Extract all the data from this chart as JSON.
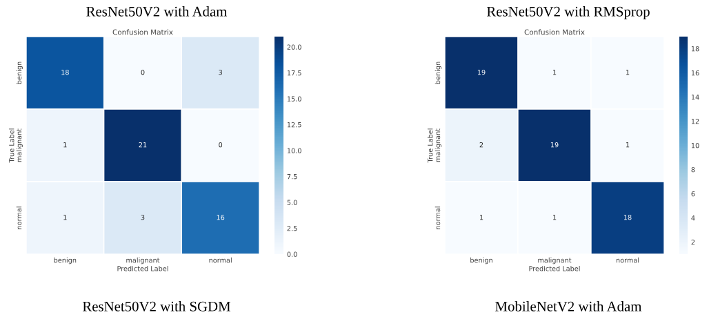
{
  "chart_data": [
    {
      "type": "heatmap",
      "title": "ResNet50V2 with Adam",
      "subtitle": "Confusion Matrix",
      "xlabel": "Predicted Label",
      "ylabel": "True Label",
      "categories": [
        "benign",
        "malignant",
        "normal"
      ],
      "y_categories": [
        "benign",
        "malignant",
        "normal"
      ],
      "cells": [
        [
          18,
          0,
          3
        ],
        [
          1,
          21,
          0
        ],
        [
          1,
          3,
          16
        ]
      ],
      "clim": [
        0,
        21
      ],
      "cticks": [
        {
          "value": 0,
          "label": "0.0"
        },
        {
          "value": 2.5,
          "label": "2.5"
        },
        {
          "value": 5,
          "label": "5.0"
        },
        {
          "value": 7.5,
          "label": "7.5"
        },
        {
          "value": 10,
          "label": "10.0"
        },
        {
          "value": 12.5,
          "label": "12.5"
        },
        {
          "value": 15,
          "label": "15.0"
        },
        {
          "value": 17.5,
          "label": "17.5"
        },
        {
          "value": 20,
          "label": "20.0"
        }
      ],
      "data_labels": true,
      "annotations": [
        "ResNet50V2 with SGDM"
      ]
    },
    {
      "type": "heatmap",
      "title": "ResNet50V2 with RMSprop",
      "subtitle": "Confusion Matrix",
      "xlabel": "Predicted Label",
      "ylabel": "True Label",
      "categories": [
        "benign",
        "malignant",
        "normal"
      ],
      "y_categories": [
        "benign",
        "malignant",
        "normal"
      ],
      "cells": [
        [
          19,
          1,
          1
        ],
        [
          2,
          19,
          1
        ],
        [
          1,
          1,
          18
        ]
      ],
      "clim": [
        1,
        19
      ],
      "cticks": [
        2,
        4,
        6,
        8,
        10,
        12,
        14,
        16,
        18
      ],
      "data_labels": true,
      "annotations": [
        "MobileNetV2 with Adam"
      ]
    }
  ]
}
